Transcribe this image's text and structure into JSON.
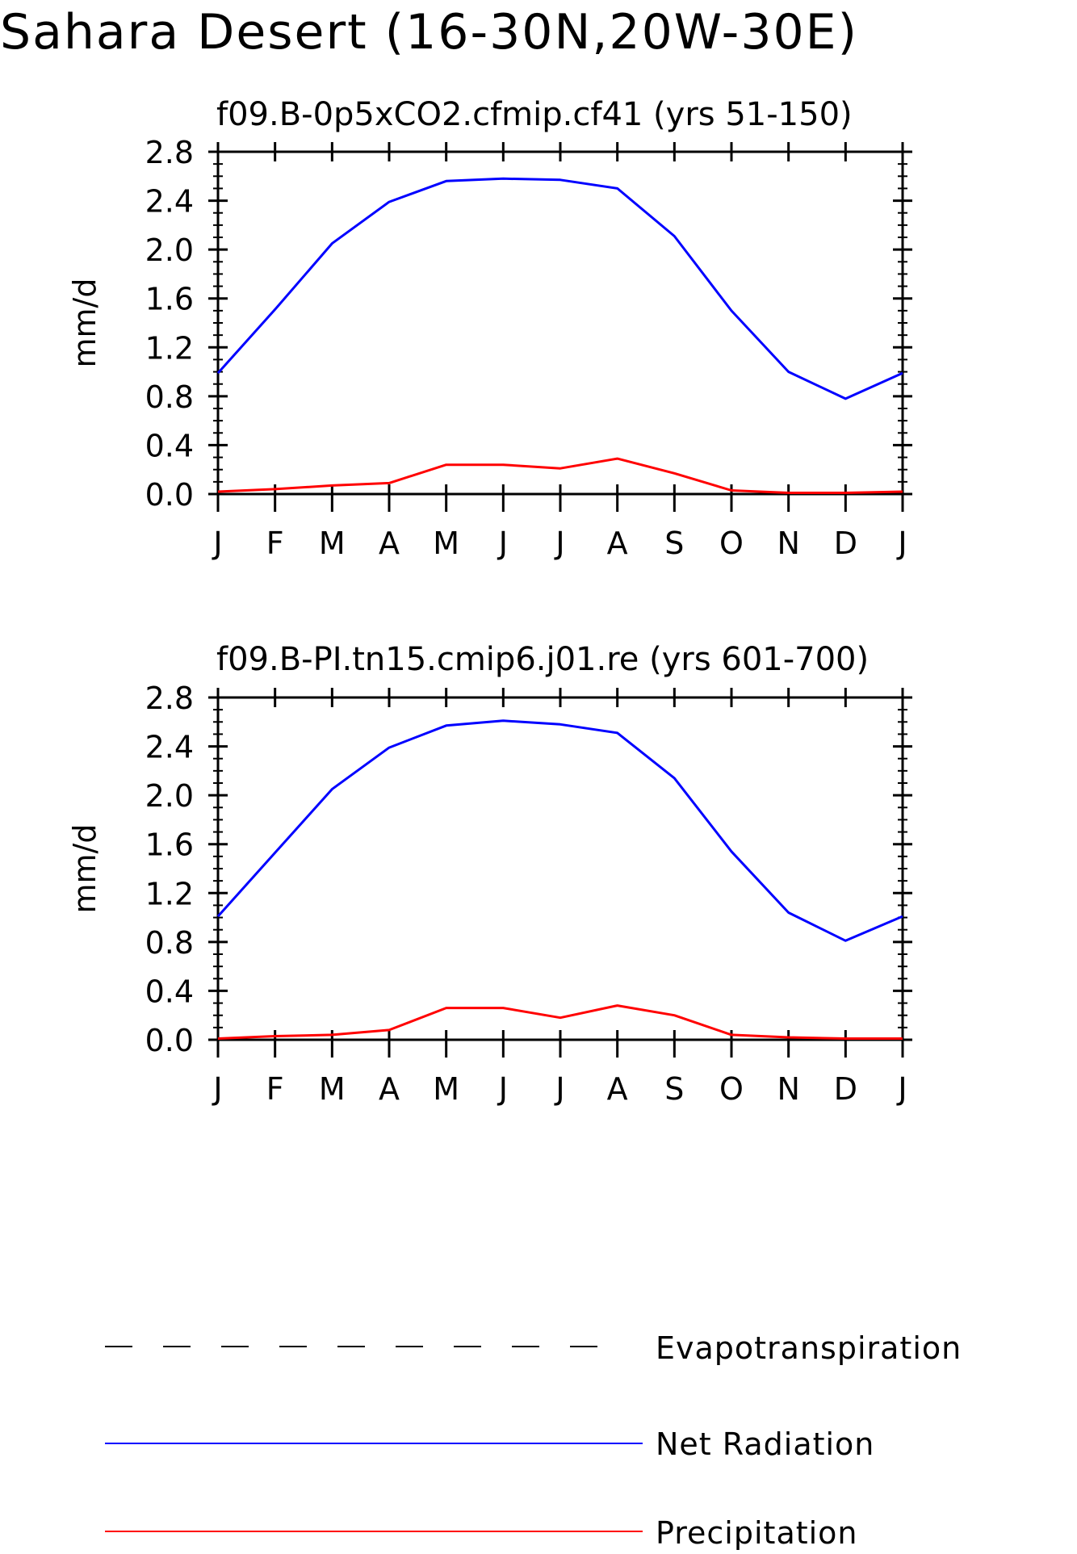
{
  "figure": {
    "title": "Sahara Desert (16-30N,20W-30E)"
  },
  "colors": {
    "evapotranspiration": "#000000",
    "net_radiation": "#0000ff",
    "precipitation": "#ff0000"
  },
  "legend": [
    {
      "key": "evapotranspiration",
      "label": "Evapotranspiration",
      "style": "dashed",
      "color": "#000000"
    },
    {
      "key": "net_radiation",
      "label": "Net Radiation",
      "style": "solid",
      "color": "#0000ff"
    },
    {
      "key": "precipitation",
      "label": "Precipitation",
      "style": "solid",
      "color": "#ff0000"
    }
  ],
  "chart_data": [
    {
      "type": "line",
      "title": "f09.B-0p5xCO2.cfmip.cf41 (yrs 51-150)",
      "xlabel": "",
      "ylabel": "mm/d",
      "categories": [
        "J",
        "F",
        "M",
        "A",
        "M",
        "J",
        "J",
        "A",
        "S",
        "O",
        "N",
        "D",
        "J"
      ],
      "ylim": [
        0,
        2.8
      ],
      "yticks": [
        "0.0",
        "0.4",
        "0.8",
        "1.2",
        "1.6",
        "2.0",
        "2.4",
        "2.8"
      ],
      "grid": false,
      "series": [
        {
          "name": "Net Radiation",
          "color": "#0000ff",
          "values": [
            0.99,
            1.51,
            2.05,
            2.39,
            2.56,
            2.58,
            2.57,
            2.5,
            2.11,
            1.5,
            1.0,
            0.78,
            0.99
          ]
        },
        {
          "name": "Precipitation",
          "color": "#ff0000",
          "values": [
            0.02,
            0.04,
            0.07,
            0.09,
            0.24,
            0.24,
            0.21,
            0.29,
            0.17,
            0.03,
            0.01,
            0.01,
            0.02
          ]
        }
      ]
    },
    {
      "type": "line",
      "title": "f09.B-PI.tn15.cmip6.j01.re (yrs 601-700)",
      "xlabel": "",
      "ylabel": "mm/d",
      "categories": [
        "J",
        "F",
        "M",
        "A",
        "M",
        "J",
        "J",
        "A",
        "S",
        "O",
        "N",
        "D",
        "J"
      ],
      "ylim": [
        0,
        2.8
      ],
      "yticks": [
        "0.0",
        "0.4",
        "0.8",
        "1.2",
        "1.6",
        "2.0",
        "2.4",
        "2.8"
      ],
      "grid": false,
      "series": [
        {
          "name": "Net Radiation",
          "color": "#0000ff",
          "values": [
            1.01,
            1.53,
            2.05,
            2.39,
            2.57,
            2.61,
            2.58,
            2.51,
            2.14,
            1.54,
            1.04,
            0.81,
            1.01
          ]
        },
        {
          "name": "Precipitation",
          "color": "#ff0000",
          "values": [
            0.01,
            0.03,
            0.04,
            0.08,
            0.26,
            0.26,
            0.18,
            0.28,
            0.2,
            0.04,
            0.02,
            0.01,
            0.01
          ]
        }
      ]
    }
  ]
}
